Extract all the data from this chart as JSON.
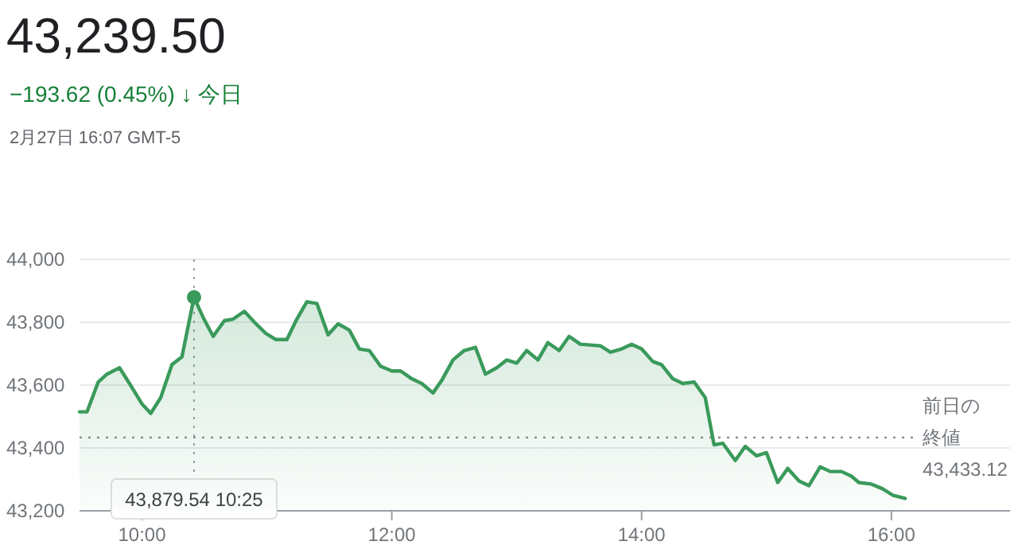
{
  "chart_data": {
    "type": "area",
    "title": "43,239.50",
    "subtitle": "−193.62 (0.45%) ↓ 今日",
    "annotations": [
      "2月27日 16:07 GMT-5"
    ],
    "x": [
      9.5,
      9.56,
      9.65,
      9.72,
      9.82,
      9.9,
      10.0,
      10.07,
      10.15,
      10.24,
      10.32,
      10.4167,
      10.49,
      10.57,
      10.66,
      10.73,
      10.82,
      10.9,
      10.99,
      11.07,
      11.16,
      11.24,
      11.32,
      11.4,
      11.49,
      11.57,
      11.66,
      11.74,
      11.82,
      11.91,
      12.0,
      12.07,
      12.16,
      12.24,
      12.33,
      12.4,
      12.49,
      12.58,
      12.67,
      12.75,
      12.84,
      12.92,
      13.0,
      13.08,
      13.17,
      13.25,
      13.34,
      13.42,
      13.51,
      13.67,
      13.75,
      13.84,
      13.92,
      14.0,
      14.09,
      14.16,
      14.25,
      14.33,
      14.42,
      14.51,
      14.58,
      14.65,
      14.75,
      14.83,
      14.92,
      15.0,
      15.09,
      15.17,
      15.26,
      15.34,
      15.43,
      15.51,
      15.6,
      15.68,
      15.74,
      15.84,
      15.93,
      16.01,
      16.11
    ],
    "series": [
      {
        "color": "#3a9a5b",
        "values": [
          43515,
          43515,
          43610,
          43635,
          43655,
          43605,
          43540,
          43510,
          43560,
          43665,
          43690,
          43879.54,
          43815,
          43755,
          43805,
          43810,
          43835,
          43800,
          43765,
          43745,
          43745,
          43810,
          43865,
          43860,
          43760,
          43795,
          43775,
          43715,
          43710,
          43660,
          43645,
          43645,
          43620,
          43605,
          43575,
          43615,
          43680,
          43710,
          43720,
          43635,
          43655,
          43680,
          43670,
          43710,
          43680,
          43735,
          43710,
          43755,
          43730,
          43725,
          43705,
          43715,
          43730,
          43715,
          43675,
          43665,
          43620,
          43605,
          43610,
          43560,
          43410,
          43415,
          43360,
          43405,
          43375,
          43385,
          43290,
          43335,
          43295,
          43280,
          43340,
          43325,
          43325,
          43310,
          43290,
          43285,
          43270,
          43250,
          43239.5
        ]
      }
    ],
    "xlim": [
      9.5,
      16.95
    ],
    "ylim": [
      43200,
      44000
    ],
    "xticks": [
      {
        "value": 10,
        "label": "10:00"
      },
      {
        "value": 12,
        "label": "12:00"
      },
      {
        "value": 14,
        "label": "14:00"
      },
      {
        "value": 16,
        "label": "16:00"
      }
    ],
    "yticks": [
      {
        "value": 43200,
        "label": "43,200"
      },
      {
        "value": 43400,
        "label": "43,400"
      },
      {
        "value": 43600,
        "label": "43,600"
      },
      {
        "value": 43800,
        "label": "43,800"
      },
      {
        "value": 44000,
        "label": "44,000"
      }
    ],
    "ref_lines": [
      {
        "axis": "y",
        "value": 43433.12,
        "label": "前日の終値 43,433.12",
        "line_style": "dotted",
        "color": "#888888"
      },
      {
        "axis": "x",
        "value": 10.4167,
        "label": "43,879.54  10:25",
        "line_style": "dotted",
        "color": "#9aa0a6"
      }
    ],
    "grid": "y",
    "marker": "none",
    "line_style": "solid"
  }
}
